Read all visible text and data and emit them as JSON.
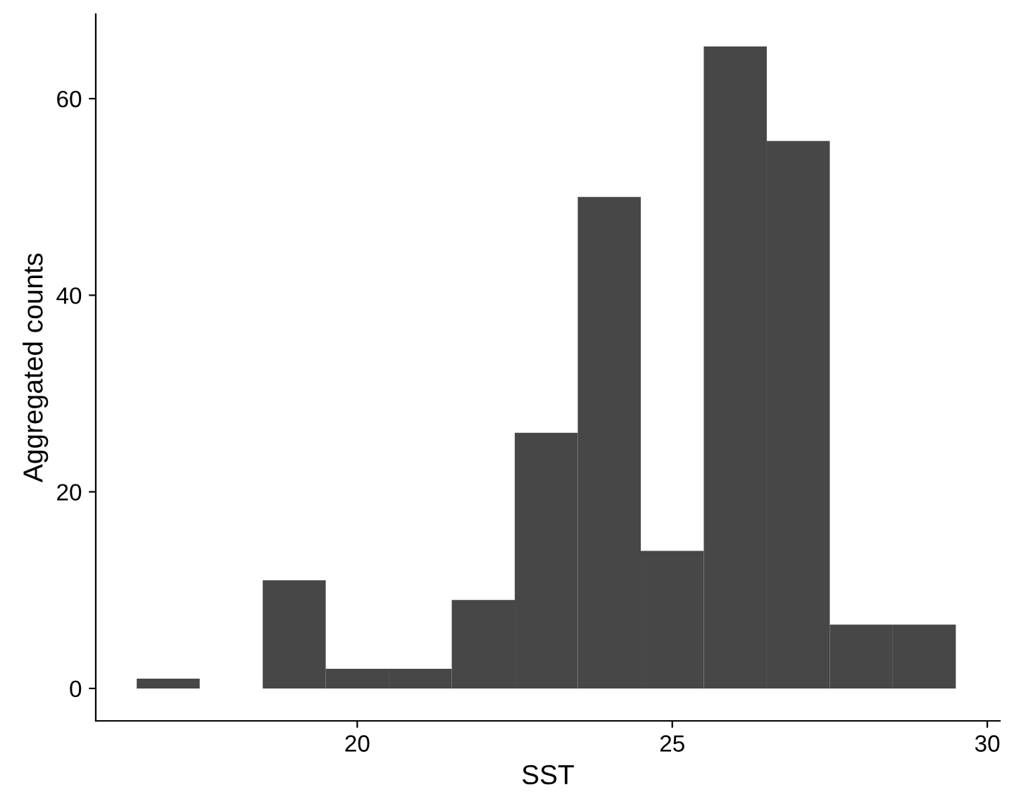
{
  "chart_data": {
    "type": "histogram",
    "xlabel": "SST",
    "ylabel": "Aggregated counts",
    "bins": [
      16.5,
      17.5,
      18.5,
      19.5,
      20.5,
      21.5,
      22.5,
      23.5,
      24.5,
      25.5,
      26.5,
      27.5,
      28.5,
      29.5
    ],
    "values": [
      1,
      0,
      11,
      2,
      2,
      9,
      26,
      50,
      14,
      65.3,
      55.7,
      6.5,
      6.5
    ],
    "color": "#474747",
    "xlim": [
      15.85,
      30.2
    ],
    "xticks": [
      20,
      25,
      30
    ],
    "ylim": [
      -3.3,
      68.6
    ],
    "yticks": [
      0,
      20,
      40,
      60
    ],
    "grid": false
  }
}
